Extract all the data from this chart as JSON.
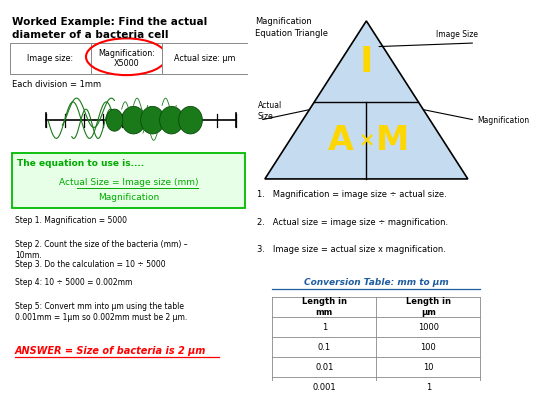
{
  "title": "Worked Example: Find the actual\ndiameter of a bacteria cell",
  "bg_color": "#ffffff",
  "divider_color": "#4472C4",
  "left_panel": {
    "table_row": [
      "Image size:",
      "Magnification:\nX5000",
      "Actual size: μm"
    ],
    "division_text": "Each division = 1mm",
    "equation_box_edge": "#00BB00",
    "equation_title": "The equation to use is....",
    "equation_line1": "Actual Size = Image size (mm)",
    "equation_line2": "Magnification",
    "steps": [
      "Step 1. Magnification = 5000",
      "Step 2. Count the size of the bacteria (mm) –\n10mm.",
      "Step 3. Do the calculation = 10 ÷ 5000",
      "Step 4: 10 ÷ 5000 = 0.002mm",
      "Step 5: Convert mm into μm using the table\n0.001mm = 1μm so 0.002mm must be 2 μm."
    ],
    "answer": "ANSWER = Size of bacteria is 2 μm",
    "answer_color": "#FF0000"
  },
  "right_panel": {
    "triangle_title": "Magnification\nEquation Triangle",
    "triangle_fill": "#C5DCF0",
    "triangle_edge": "#000000",
    "letter_I": "I",
    "letter_A": "A",
    "letter_x": "×",
    "letter_M": "M",
    "letter_color": "#FFD700",
    "label_image_size": "Image Size",
    "label_actual_size": "Actual\nSize",
    "label_magnification": "Magnification",
    "formulas": [
      "1.   Magnification = image size ÷ actual size.",
      "2.   Actual size = image size ÷ magnification.",
      "3.   Image size = actual size x magnification."
    ],
    "table_title": "Conversion Table: mm to μm",
    "table_title_color": "#1F5C9E",
    "col1_header": "Length in\nmm",
    "col2_header": "Length in\nμm",
    "table_data": [
      [
        "1",
        "1000"
      ],
      [
        "0.1",
        "100"
      ],
      [
        "0.01",
        "10"
      ],
      [
        "0.001",
        "1"
      ]
    ]
  }
}
